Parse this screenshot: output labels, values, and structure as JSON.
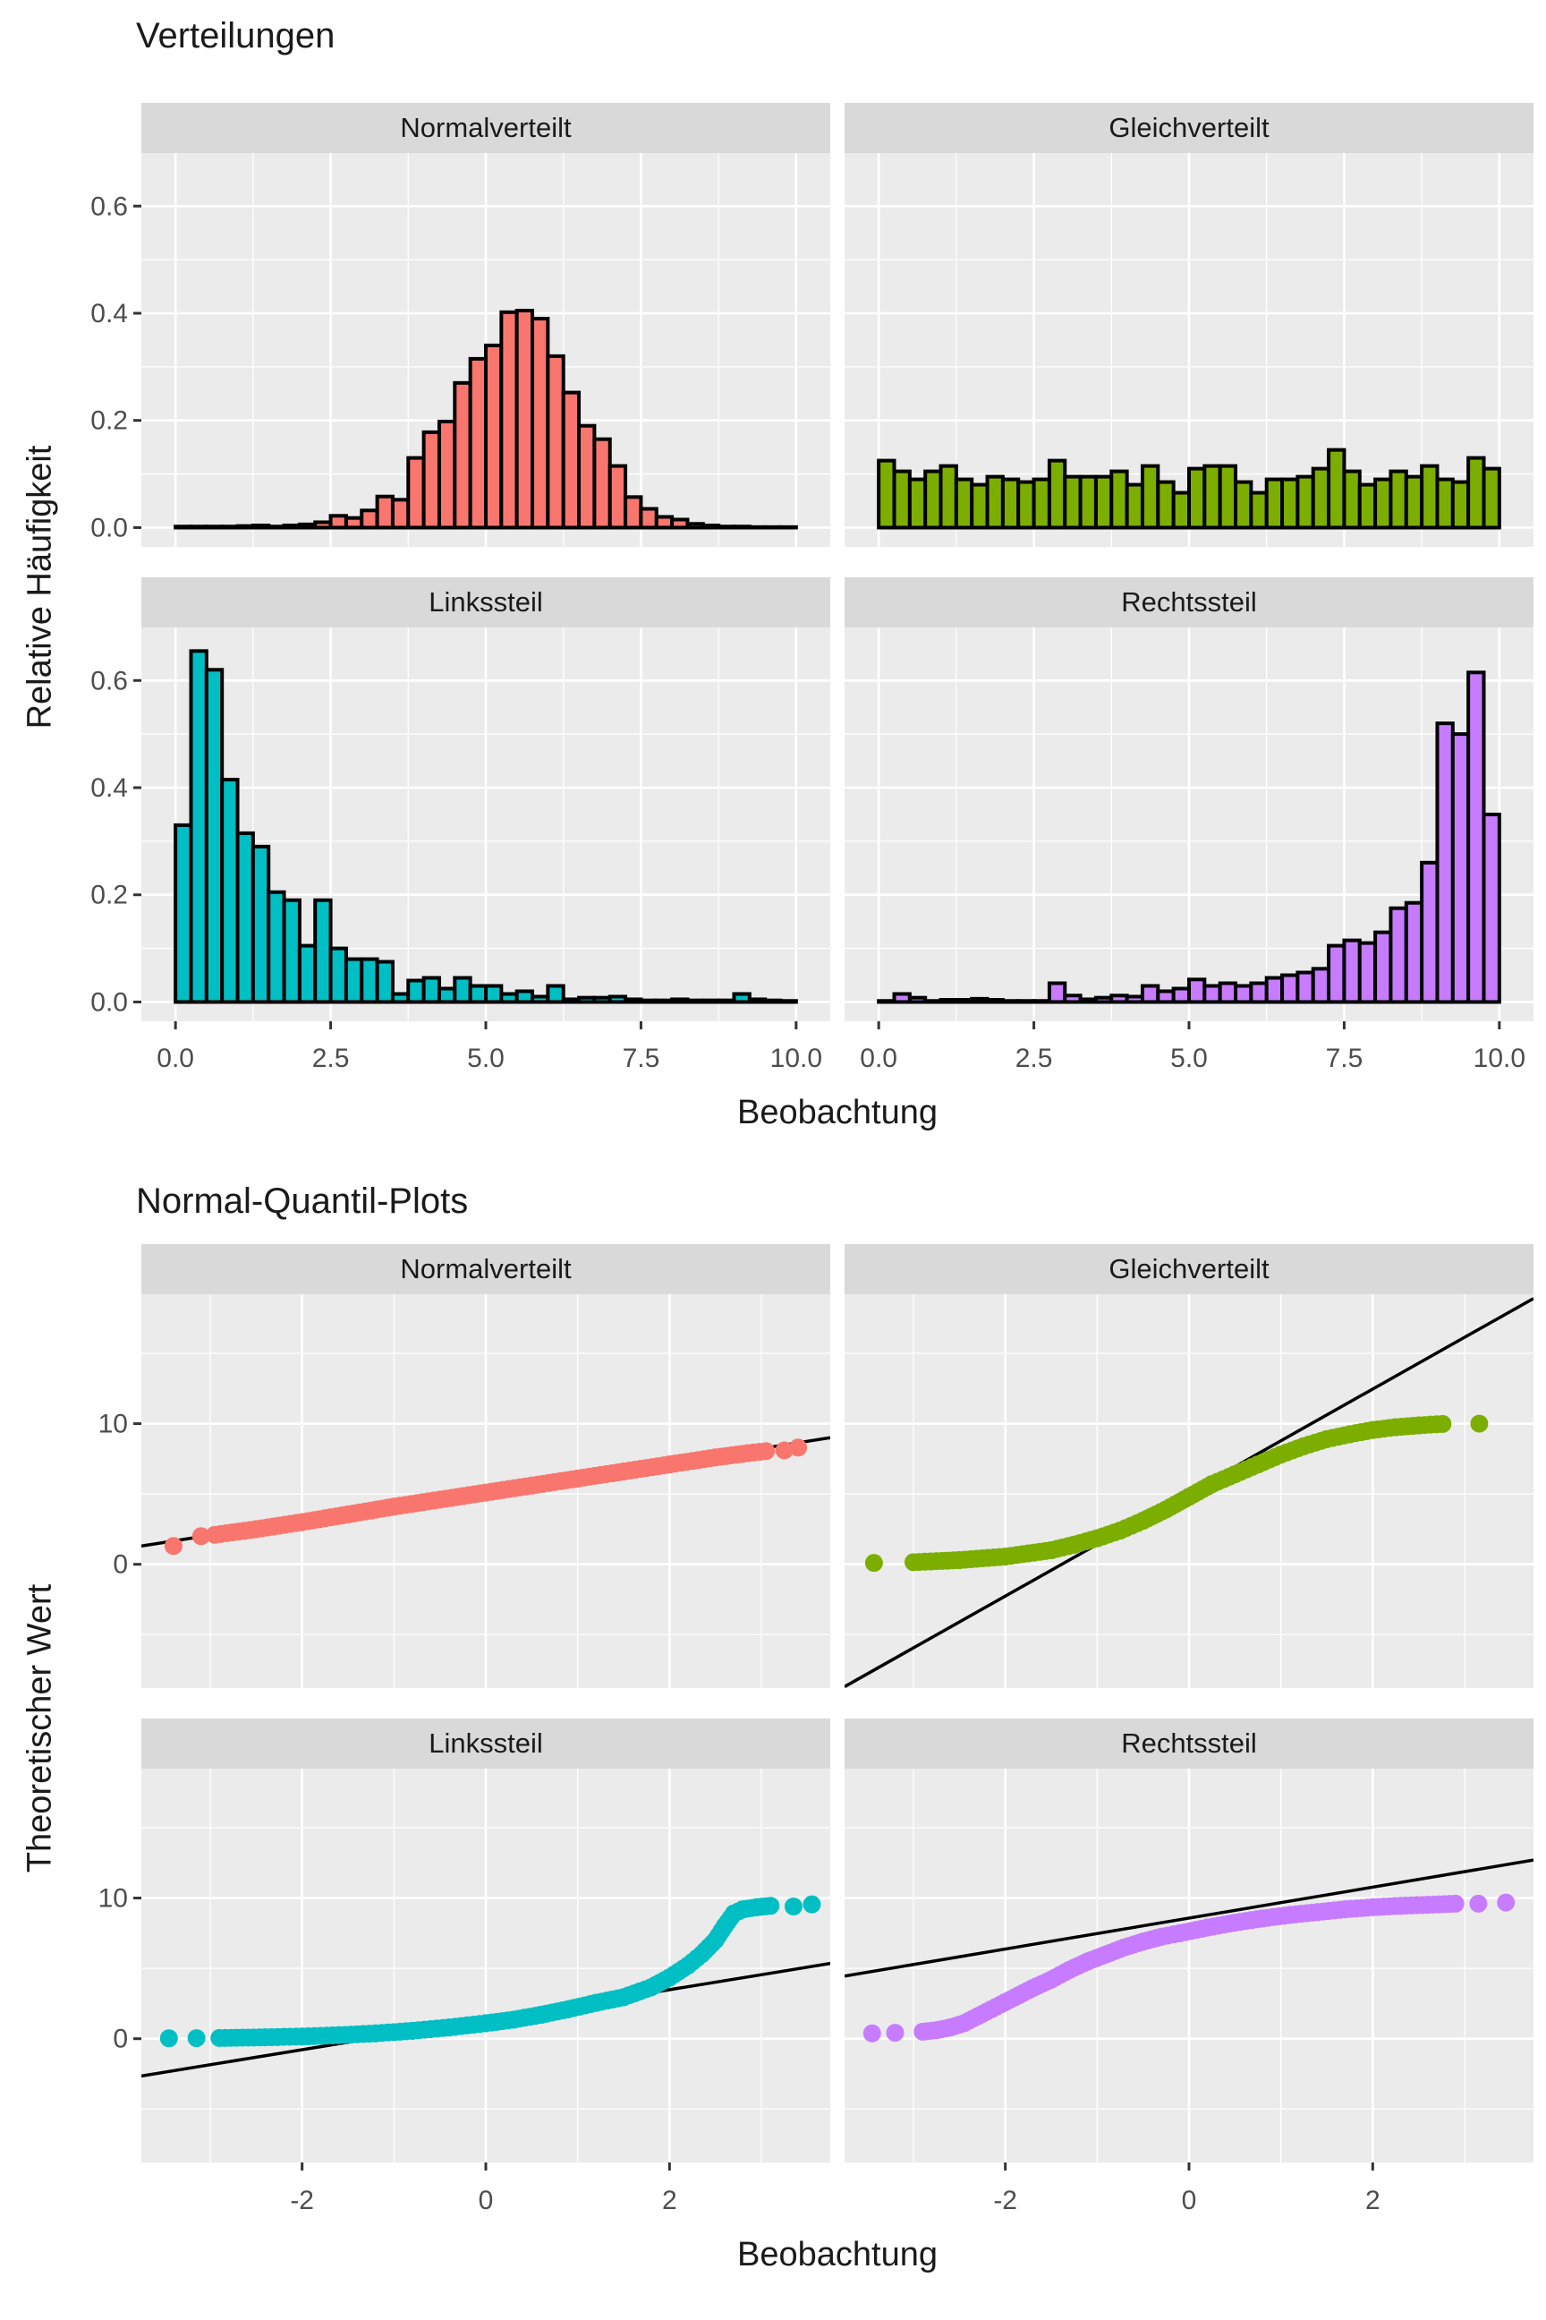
{
  "colors": {
    "panel_background": "#EBEBEB",
    "strip_background": "#D9D9D9",
    "grid": "#FFFFFF",
    "tick_text": "#4D4D4D",
    "title_text": "#1a1a1a",
    "bar_outline": "#000000",
    "reference_line": "#000000",
    "normalverteilt": "#F8766D",
    "gleichverteilt": "#7CAE00",
    "linkssteil": "#00BFC4",
    "rechtssteil": "#C77CFF"
  },
  "chart_data": [
    {
      "type": "bar",
      "subtype": "faceted-histogram-2x2",
      "title": "Verteilungen",
      "xlabel": "Beobachtung",
      "ylabel": "Relative Häufigkeit",
      "xlim": [
        -0.55,
        10.55
      ],
      "ylim": [
        -0.036,
        0.699
      ],
      "bin_start": 0,
      "bin_width": 0.25,
      "x_tick_values": [
        0,
        2.5,
        5,
        7.5,
        10
      ],
      "x_tick_labels": [
        "0.0",
        "2.5",
        "5.0",
        "7.5",
        "10.0"
      ],
      "x_minor": [
        1.25,
        3.75,
        6.25,
        8.75
      ],
      "y_tick_values": [
        0,
        0.2,
        0.4,
        0.6
      ],
      "y_tick_labels": [
        "0.0",
        "0.2",
        "0.4",
        "0.6"
      ],
      "y_minor": [
        0.1,
        0.3,
        0.5
      ],
      "grid": true,
      "legend": "none",
      "facets": [
        {
          "label": "Normalverteilt",
          "color": "#F8766D",
          "heights": [
            0.002,
            0.002,
            0.002,
            0.002,
            0.003,
            0.004,
            0.002,
            0.004,
            0.006,
            0.01,
            0.022,
            0.018,
            0.032,
            0.058,
            0.052,
            0.13,
            0.178,
            0.198,
            0.27,
            0.315,
            0.34,
            0.402,
            0.405,
            0.39,
            0.32,
            0.252,
            0.19,
            0.165,
            0.115,
            0.057,
            0.035,
            0.02,
            0.015,
            0.007,
            0.004,
            0.002,
            0.002,
            0.001,
            0.001,
            0.001
          ]
        },
        {
          "label": "Gleichverteilt",
          "color": "#7CAE00",
          "heights": [
            0.125,
            0.105,
            0.09,
            0.105,
            0.115,
            0.09,
            0.08,
            0.095,
            0.09,
            0.085,
            0.09,
            0.125,
            0.095,
            0.095,
            0.095,
            0.105,
            0.08,
            0.115,
            0.085,
            0.065,
            0.11,
            0.115,
            0.115,
            0.085,
            0.065,
            0.09,
            0.09,
            0.095,
            0.11,
            0.145,
            0.105,
            0.08,
            0.09,
            0.105,
            0.095,
            0.115,
            0.09,
            0.085,
            0.13,
            0.11
          ]
        },
        {
          "label": "Linkssteil",
          "color": "#00BFC4",
          "heights": [
            0.33,
            0.655,
            0.62,
            0.415,
            0.315,
            0.29,
            0.205,
            0.19,
            0.105,
            0.19,
            0.1,
            0.08,
            0.08,
            0.075,
            0.015,
            0.04,
            0.045,
            0.025,
            0.045,
            0.03,
            0.03,
            0.015,
            0.02,
            0.01,
            0.03,
            0.005,
            0.008,
            0.008,
            0.01,
            0.005,
            0.003,
            0.003,
            0.005,
            0.003,
            0.003,
            0.003,
            0.015,
            0.005,
            0.003,
            0.002
          ]
        },
        {
          "label": "Rechtssteil",
          "color": "#C77CFF",
          "heights": [
            0.002,
            0.015,
            0.008,
            0.002,
            0.004,
            0.004,
            0.006,
            0.004,
            0.002,
            0.002,
            0.002,
            0.035,
            0.012,
            0.005,
            0.008,
            0.012,
            0.01,
            0.03,
            0.02,
            0.025,
            0.042,
            0.03,
            0.035,
            0.03,
            0.035,
            0.045,
            0.05,
            0.055,
            0.062,
            0.105,
            0.115,
            0.11,
            0.13,
            0.175,
            0.185,
            0.26,
            0.52,
            0.5,
            0.615,
            0.35
          ]
        }
      ]
    },
    {
      "type": "scatter",
      "subtype": "faceted-qq-2x2",
      "title": "Normal-Quantil-Plots",
      "xlabel": "Beobachtung",
      "ylabel": "Theoretischer Wert",
      "xlim": [
        -3.75,
        3.75
      ],
      "ylim": [
        -8.8,
        19.2
      ],
      "x_tick_values": [
        -2,
        0,
        2
      ],
      "x_tick_labels": [
        "-2",
        "0",
        "2"
      ],
      "x_minor": [
        -3,
        -1,
        1,
        3
      ],
      "y_tick_values": [
        0,
        10
      ],
      "y_tick_labels": [
        "0",
        "10"
      ],
      "y_minor": [
        -5,
        5,
        15
      ],
      "grid": true,
      "legend": "none",
      "facets": [
        {
          "label": "Normalverteilt",
          "color": "#F8766D",
          "band": [
            [
              -2.95,
              2.1
            ],
            [
              -2.5,
              2.5
            ],
            [
              -2.0,
              3.0
            ],
            [
              -1.5,
              3.55
            ],
            [
              -1.0,
              4.1
            ],
            [
              -0.5,
              4.6
            ],
            [
              0,
              5.1
            ],
            [
              0.5,
              5.6
            ],
            [
              1.0,
              6.1
            ],
            [
              1.5,
              6.6
            ],
            [
              2.0,
              7.1
            ],
            [
              2.5,
              7.6
            ],
            [
              2.85,
              7.9
            ],
            [
              3.05,
              8.05
            ]
          ],
          "isolated": [
            [
              -3.4,
              1.3
            ],
            [
              -3.1,
              2.0
            ],
            [
              3.25,
              8.1
            ],
            [
              3.4,
              8.3
            ]
          ],
          "line": [
            [
              -3.75,
              1.3
            ],
            [
              3.75,
              9.0
            ]
          ]
        },
        {
          "label": "Gleichverteilt",
          "color": "#7CAE00",
          "band": [
            [
              -3.0,
              0.15
            ],
            [
              -2.5,
              0.3
            ],
            [
              -2.0,
              0.55
            ],
            [
              -1.5,
              1.0
            ],
            [
              -1.25,
              1.4
            ],
            [
              -1.0,
              1.85
            ],
            [
              -0.75,
              2.4
            ],
            [
              -0.5,
              3.1
            ],
            [
              -0.25,
              3.9
            ],
            [
              0,
              4.8
            ],
            [
              0.25,
              5.7
            ],
            [
              0.5,
              6.4
            ],
            [
              0.75,
              7.1
            ],
            [
              1.0,
              7.8
            ],
            [
              1.25,
              8.4
            ],
            [
              1.5,
              8.9
            ],
            [
              1.75,
              9.25
            ],
            [
              2.0,
              9.55
            ],
            [
              2.25,
              9.75
            ],
            [
              2.5,
              9.88
            ],
            [
              2.76,
              9.98
            ]
          ],
          "isolated": [
            [
              -3.43,
              0.1
            ],
            [
              3.16,
              10.0
            ]
          ],
          "line": [
            [
              -3.75,
              -8.7
            ],
            [
              3.75,
              18.9
            ]
          ]
        },
        {
          "label": "Linkssteil",
          "color": "#00BFC4",
          "band": [
            [
              -2.9,
              0.05
            ],
            [
              -2.4,
              0.1
            ],
            [
              -2.0,
              0.16
            ],
            [
              -1.6,
              0.25
            ],
            [
              -1.2,
              0.38
            ],
            [
              -0.8,
              0.56
            ],
            [
              -0.4,
              0.8
            ],
            [
              0,
              1.1
            ],
            [
              0.3,
              1.35
            ],
            [
              0.6,
              1.7
            ],
            [
              0.9,
              2.1
            ],
            [
              1.2,
              2.55
            ],
            [
              1.5,
              2.95
            ],
            [
              1.8,
              3.65
            ],
            [
              2.0,
              4.35
            ],
            [
              2.2,
              5.2
            ],
            [
              2.35,
              6.0
            ],
            [
              2.5,
              7.0
            ],
            [
              2.6,
              8.0
            ],
            [
              2.7,
              8.9
            ],
            [
              2.8,
              9.2
            ],
            [
              2.95,
              9.35
            ],
            [
              3.1,
              9.45
            ]
          ],
          "isolated": [
            [
              -3.45,
              0.03
            ],
            [
              -3.15,
              0.04
            ],
            [
              3.35,
              9.4
            ],
            [
              3.55,
              9.55
            ]
          ],
          "line": [
            [
              -3.75,
              -2.65
            ],
            [
              3.75,
              5.35
            ]
          ]
        },
        {
          "label": "Rechtssteil",
          "color": "#C77CFF",
          "band": [
            [
              -2.9,
              0.5
            ],
            [
              -2.75,
              0.6
            ],
            [
              -2.6,
              0.8
            ],
            [
              -2.45,
              1.1
            ],
            [
              -2.3,
              1.6
            ],
            [
              -2.15,
              2.1
            ],
            [
              -2.0,
              2.6
            ],
            [
              -1.85,
              3.1
            ],
            [
              -1.7,
              3.6
            ],
            [
              -1.5,
              4.2
            ],
            [
              -1.3,
              4.9
            ],
            [
              -1.1,
              5.5
            ],
            [
              -0.9,
              6.0
            ],
            [
              -0.7,
              6.5
            ],
            [
              -0.5,
              6.9
            ],
            [
              -0.3,
              7.25
            ],
            [
              -0.1,
              7.5
            ],
            [
              0.2,
              7.9
            ],
            [
              0.5,
              8.25
            ],
            [
              0.8,
              8.55
            ],
            [
              1.1,
              8.8
            ],
            [
              1.4,
              9.0
            ],
            [
              1.7,
              9.2
            ],
            [
              2.0,
              9.35
            ],
            [
              2.3,
              9.45
            ],
            [
              2.6,
              9.52
            ],
            [
              2.9,
              9.6
            ]
          ],
          "isolated": [
            [
              -3.45,
              0.38
            ],
            [
              -3.2,
              0.42
            ],
            [
              3.15,
              9.6
            ],
            [
              3.45,
              9.68
            ]
          ],
          "line": [
            [
              -3.75,
              4.45
            ],
            [
              3.75,
              12.7
            ]
          ]
        }
      ]
    }
  ]
}
